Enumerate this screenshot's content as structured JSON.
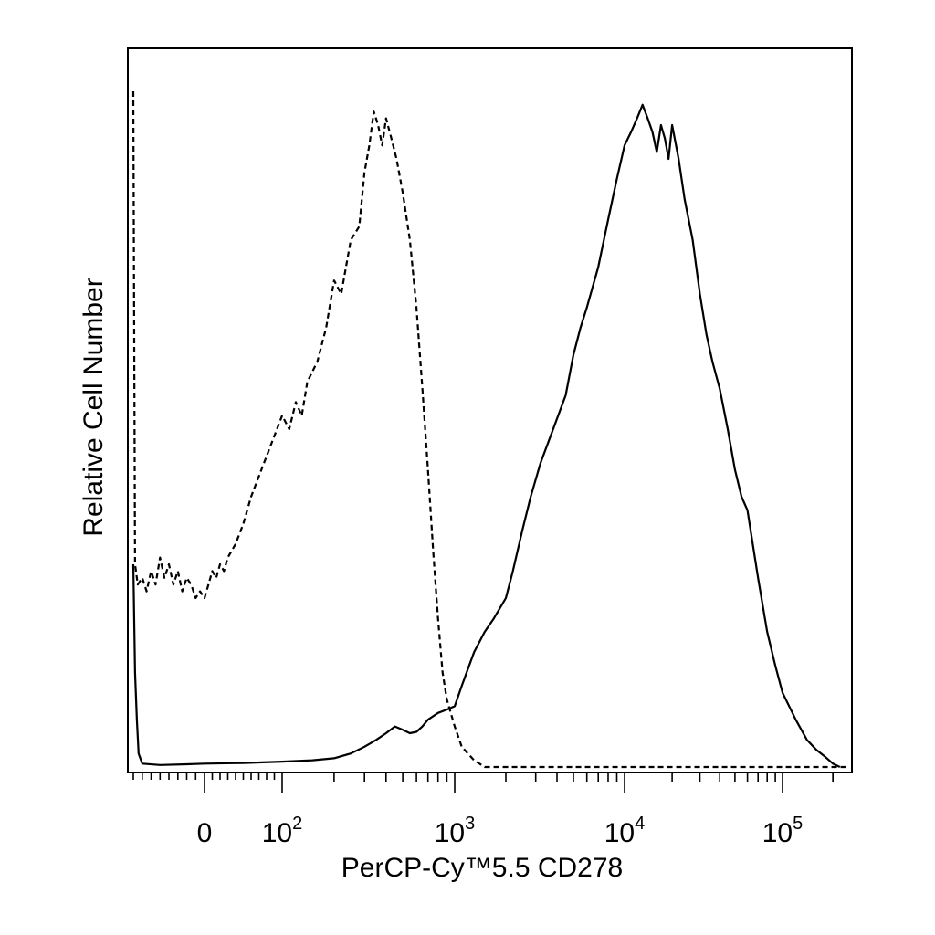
{
  "chart_data": {
    "type": "line",
    "xlabel": "PerCP-Cy™5.5 CD278",
    "ylabel": "Relative Cell Number",
    "x_scale": "biexponential",
    "x_tick_labels": [
      {
        "value": 0,
        "base": "0",
        "exp": ""
      },
      {
        "value": 100,
        "base": "10",
        "exp": "2"
      },
      {
        "value": 1000,
        "base": "10",
        "exp": "3"
      },
      {
        "value": 10000,
        "base": "10",
        "exp": "4"
      },
      {
        "value": 100000,
        "base": "10",
        "exp": "5"
      }
    ],
    "xlim": [
      -80,
      250000
    ],
    "ylim": [
      0,
      100
    ],
    "grid": false,
    "legend": "none",
    "series": [
      {
        "line_style": "dashed",
        "color": "#000000",
        "points": [
          [
            -80,
            100
          ],
          [
            -78,
            30
          ],
          [
            -75,
            27
          ],
          [
            -70,
            28
          ],
          [
            -65,
            26
          ],
          [
            -60,
            29
          ],
          [
            -55,
            27
          ],
          [
            -50,
            31
          ],
          [
            -45,
            28
          ],
          [
            -40,
            30
          ],
          [
            -35,
            27
          ],
          [
            -30,
            29
          ],
          [
            -25,
            26
          ],
          [
            -20,
            28
          ],
          [
            -15,
            27
          ],
          [
            -10,
            25
          ],
          [
            -5,
            26
          ],
          [
            0,
            25
          ],
          [
            5,
            27
          ],
          [
            10,
            29
          ],
          [
            15,
            28
          ],
          [
            20,
            30
          ],
          [
            25,
            29
          ],
          [
            30,
            31
          ],
          [
            40,
            33
          ],
          [
            50,
            36
          ],
          [
            60,
            40
          ],
          [
            70,
            43
          ],
          [
            80,
            46
          ],
          [
            90,
            49
          ],
          [
            100,
            52
          ],
          [
            110,
            50
          ],
          [
            120,
            54
          ],
          [
            130,
            52
          ],
          [
            140,
            57
          ],
          [
            160,
            60
          ],
          [
            180,
            65
          ],
          [
            200,
            72
          ],
          [
            220,
            70
          ],
          [
            250,
            78
          ],
          [
            280,
            80
          ],
          [
            300,
            88
          ],
          [
            320,
            92
          ],
          [
            340,
            97
          ],
          [
            360,
            95
          ],
          [
            380,
            92
          ],
          [
            400,
            96
          ],
          [
            430,
            93
          ],
          [
            460,
            90
          ],
          [
            500,
            85
          ],
          [
            550,
            78
          ],
          [
            600,
            68
          ],
          [
            650,
            56
          ],
          [
            700,
            44
          ],
          [
            750,
            32
          ],
          [
            800,
            22
          ],
          [
            850,
            14
          ],
          [
            900,
            10
          ],
          [
            1000,
            6
          ],
          [
            1100,
            3
          ],
          [
            1300,
            1
          ],
          [
            1500,
            0
          ],
          [
            2000,
            0
          ],
          [
            5000,
            0
          ],
          [
            10000,
            0
          ],
          [
            50000,
            0
          ],
          [
            100000,
            0
          ],
          [
            250000,
            0
          ]
        ]
      },
      {
        "line_style": "solid",
        "color": "#000000",
        "points": [
          [
            -80,
            30
          ],
          [
            -78,
            14
          ],
          [
            -76,
            7
          ],
          [
            -74,
            2
          ],
          [
            -70,
            0.5
          ],
          [
            -50,
            0.3
          ],
          [
            -20,
            0.4
          ],
          [
            0,
            0.5
          ],
          [
            50,
            0.6
          ],
          [
            100,
            0.8
          ],
          [
            150,
            1
          ],
          [
            200,
            1.3
          ],
          [
            250,
            2
          ],
          [
            300,
            3
          ],
          [
            350,
            4
          ],
          [
            400,
            5
          ],
          [
            450,
            6
          ],
          [
            500,
            5.5
          ],
          [
            550,
            5
          ],
          [
            600,
            5.2
          ],
          [
            650,
            6
          ],
          [
            700,
            7
          ],
          [
            800,
            8
          ],
          [
            900,
            8.5
          ],
          [
            1000,
            9
          ],
          [
            1100,
            12
          ],
          [
            1300,
            17
          ],
          [
            1500,
            20
          ],
          [
            1700,
            22
          ],
          [
            2000,
            25
          ],
          [
            2200,
            29
          ],
          [
            2500,
            35
          ],
          [
            2800,
            40
          ],
          [
            3200,
            45
          ],
          [
            3800,
            50
          ],
          [
            4500,
            55
          ],
          [
            5000,
            61
          ],
          [
            5500,
            65
          ],
          [
            6000,
            68
          ],
          [
            7000,
            74
          ],
          [
            8000,
            81
          ],
          [
            9000,
            87
          ],
          [
            10000,
            92
          ],
          [
            11000,
            94
          ],
          [
            12000,
            96
          ],
          [
            13000,
            98
          ],
          [
            14000,
            96
          ],
          [
            15000,
            94
          ],
          [
            16000,
            91
          ],
          [
            17000,
            95
          ],
          [
            18000,
            93
          ],
          [
            19000,
            90
          ],
          [
            20000,
            95
          ],
          [
            22000,
            90
          ],
          [
            24000,
            84
          ],
          [
            27000,
            78
          ],
          [
            30000,
            70
          ],
          [
            33000,
            64
          ],
          [
            36000,
            60
          ],
          [
            40000,
            56
          ],
          [
            45000,
            50
          ],
          [
            50000,
            44
          ],
          [
            55000,
            40
          ],
          [
            60000,
            38
          ],
          [
            70000,
            28
          ],
          [
            80000,
            20
          ],
          [
            90000,
            15
          ],
          [
            100000,
            11
          ],
          [
            120000,
            7
          ],
          [
            140000,
            4
          ],
          [
            160000,
            2.5
          ],
          [
            180000,
            1.5
          ],
          [
            200000,
            0.5
          ],
          [
            220000,
            0
          ]
        ]
      }
    ]
  }
}
